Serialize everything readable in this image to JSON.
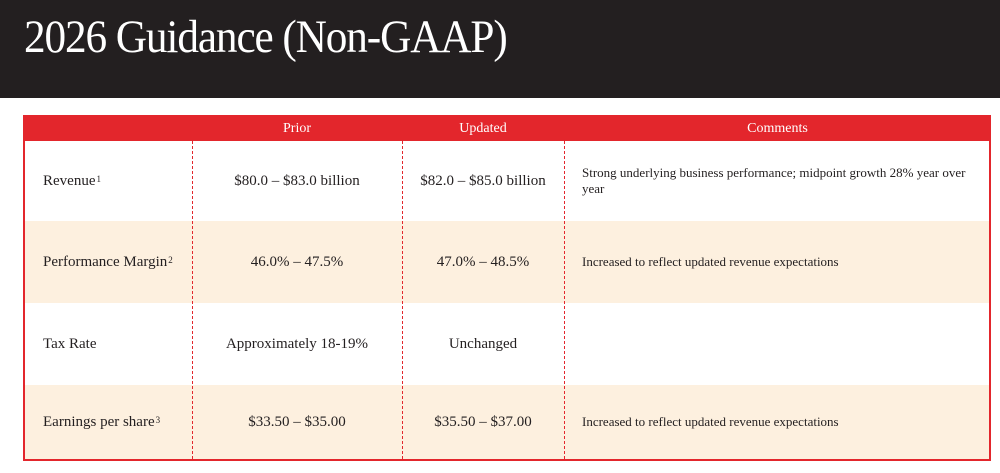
{
  "page": {
    "title": "2026 Guidance (Non-GAAP)"
  },
  "table": {
    "headers": [
      "",
      "Prior",
      "Updated",
      "Comments"
    ],
    "rows": [
      {
        "label": "Revenue",
        "footnote": "1",
        "prior": "$80.0 – $83.0 billion",
        "updated": "$82.0 – $85.0 billion",
        "comment": "Strong underlying business performance; midpoint growth 28% year over year"
      },
      {
        "label": "Performance Margin",
        "footnote": "2",
        "prior": "46.0% – 47.5%",
        "updated": "47.0% – 48.5%",
        "comment": "Increased to reflect updated revenue expectations"
      },
      {
        "label": "Tax Rate",
        "footnote": "",
        "prior": "Approximately 18-19%",
        "updated": "Unchanged",
        "comment": ""
      },
      {
        "label": "Earnings per share",
        "footnote": "3",
        "prior": "$33.50 – $35.00",
        "updated": "$35.50 – $37.00",
        "comment": "Increased to reflect updated revenue expectations"
      }
    ]
  },
  "colors": {
    "header_bg": "#231f20",
    "accent_red": "#e3262c",
    "row_alt_bg": "#fdf0df",
    "text": "#231f20"
  }
}
